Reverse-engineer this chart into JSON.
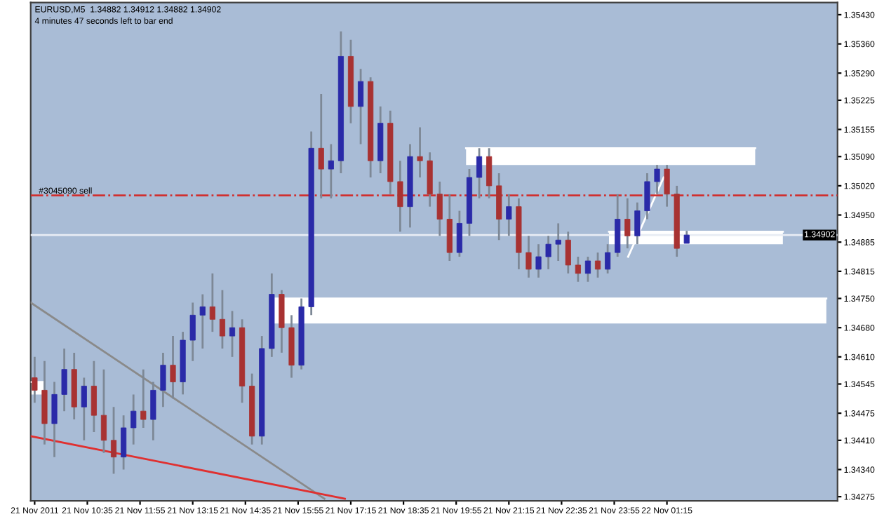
{
  "chart_data": {
    "type": "candlestick",
    "title": "EURUSD,M5  1.34882 1.34912 1.34882 1.34902",
    "subtitle": "4 minutes 47 seconds left to bar end",
    "x": [
      "2011-11-21T09:15",
      "2011-11-21T09:30",
      "2011-11-21T09:45",
      "2011-11-21T10:00",
      "2011-11-21T10:15",
      "2011-11-21T10:30",
      "2011-11-21T10:45",
      "2011-11-21T11:00",
      "2011-11-21T11:15",
      "2011-11-21T11:30",
      "2011-11-21T11:45",
      "2011-11-21T12:00",
      "2011-11-21T12:15",
      "2011-11-21T12:30",
      "2011-11-21T12:45",
      "2011-11-21T13:00",
      "2011-11-21T13:15",
      "2011-11-21T13:30",
      "2011-11-21T13:45",
      "2011-11-21T14:00",
      "2011-11-21T14:15",
      "2011-11-21T14:30",
      "2011-11-21T14:45",
      "2011-11-21T15:00",
      "2011-11-21T15:15",
      "2011-11-21T15:30",
      "2011-11-21T15:45",
      "2011-11-21T16:00",
      "2011-11-21T16:15",
      "2011-11-21T16:30",
      "2011-11-21T16:45",
      "2011-11-21T17:00",
      "2011-11-21T17:15",
      "2011-11-21T17:30",
      "2011-11-21T17:45",
      "2011-11-21T18:00",
      "2011-11-21T18:15",
      "2011-11-21T18:30",
      "2011-11-21T18:45",
      "2011-11-21T19:00",
      "2011-11-21T19:15",
      "2011-11-21T19:30",
      "2011-11-21T19:45",
      "2011-11-21T20:00",
      "2011-11-21T20:15",
      "2011-11-21T20:30",
      "2011-11-21T20:45",
      "2011-11-21T21:00",
      "2011-11-21T21:15",
      "2011-11-21T21:30",
      "2011-11-21T21:45",
      "2011-11-21T22:00",
      "2011-11-21T22:15",
      "2011-11-21T22:30",
      "2011-11-21T22:45",
      "2011-11-21T23:00",
      "2011-11-21T23:15",
      "2011-11-21T23:30",
      "2011-11-21T23:45",
      "2011-11-22T00:00",
      "2011-11-22T00:15",
      "2011-11-22T00:30",
      "2011-11-22T00:45",
      "2011-11-22T01:00",
      "2011-11-22T01:15",
      "2011-11-22T01:30",
      "2011-11-22T01:45"
    ],
    "ohlc": [
      [
        1.3456,
        1.3461,
        1.345,
        1.3453
      ],
      [
        1.3453,
        1.346,
        1.344,
        1.3445
      ],
      [
        1.3445,
        1.3455,
        1.3437,
        1.3452
      ],
      [
        1.3452,
        1.3463,
        1.3448,
        1.3458
      ],
      [
        1.3458,
        1.3462,
        1.3446,
        1.3449
      ],
      [
        1.3449,
        1.3456,
        1.3441,
        1.3454
      ],
      [
        1.3454,
        1.346,
        1.3443,
        1.3447
      ],
      [
        1.3447,
        1.3458,
        1.3438,
        1.3441
      ],
      [
        1.3441,
        1.3449,
        1.3433,
        1.3437
      ],
      [
        1.3437,
        1.3447,
        1.3434,
        1.3444
      ],
      [
        1.3444,
        1.3452,
        1.344,
        1.3448
      ],
      [
        1.3448,
        1.3458,
        1.3444,
        1.3446
      ],
      [
        1.3446,
        1.3455,
        1.3441,
        1.3453
      ],
      [
        1.3453,
        1.3462,
        1.3449,
        1.3459
      ],
      [
        1.3459,
        1.3466,
        1.3451,
        1.3455
      ],
      [
        1.3455,
        1.3467,
        1.3452,
        1.3465
      ],
      [
        1.3465,
        1.3474,
        1.346,
        1.3471
      ],
      [
        1.3471,
        1.3476,
        1.3463,
        1.3473
      ],
      [
        1.3473,
        1.3481,
        1.3467,
        1.347
      ],
      [
        1.347,
        1.3477,
        1.3463,
        1.3466
      ],
      [
        1.3466,
        1.3472,
        1.3461,
        1.3468
      ],
      [
        1.3468,
        1.347,
        1.345,
        1.3454
      ],
      [
        1.3454,
        1.3457,
        1.344,
        1.3442
      ],
      [
        1.3442,
        1.3466,
        1.344,
        1.3463
      ],
      [
        1.3463,
        1.3481,
        1.3461,
        1.3476
      ],
      [
        1.3476,
        1.3477,
        1.3462,
        1.3468
      ],
      [
        1.3468,
        1.3471,
        1.3456,
        1.3459
      ],
      [
        1.3459,
        1.3475,
        1.3458,
        1.3473
      ],
      [
        1.3473,
        1.3515,
        1.3471,
        1.3511
      ],
      [
        1.3511,
        1.3524,
        1.3499,
        1.3506
      ],
      [
        1.3506,
        1.3512,
        1.3499,
        1.3508
      ],
      [
        1.3508,
        1.3539,
        1.3505,
        1.3533
      ],
      [
        1.3533,
        1.3537,
        1.3517,
        1.3521
      ],
      [
        1.3521,
        1.353,
        1.3512,
        1.3527
      ],
      [
        1.3527,
        1.3528,
        1.3504,
        1.3508
      ],
      [
        1.3508,
        1.3521,
        1.3505,
        1.3517
      ],
      [
        1.3517,
        1.352,
        1.35,
        1.3503
      ],
      [
        1.3503,
        1.3508,
        1.3491,
        1.3497
      ],
      [
        1.3497,
        1.3512,
        1.3492,
        1.3509
      ],
      [
        1.3509,
        1.3516,
        1.3504,
        1.3508
      ],
      [
        1.3508,
        1.351,
        1.3497,
        1.35
      ],
      [
        1.35,
        1.3503,
        1.349,
        1.3494
      ],
      [
        1.3494,
        1.35,
        1.3484,
        1.3486
      ],
      [
        1.3486,
        1.3496,
        1.3485,
        1.3493
      ],
      [
        1.3493,
        1.3506,
        1.349,
        1.3504
      ],
      [
        1.3504,
        1.3511,
        1.3499,
        1.3509
      ],
      [
        1.3509,
        1.3511,
        1.3499,
        1.3502
      ],
      [
        1.3502,
        1.3505,
        1.3489,
        1.3494
      ],
      [
        1.3494,
        1.35,
        1.349,
        1.3497
      ],
      [
        1.3497,
        1.3499,
        1.3482,
        1.3486
      ],
      [
        1.3486,
        1.349,
        1.348,
        1.3482
      ],
      [
        1.3482,
        1.3488,
        1.348,
        1.3485
      ],
      [
        1.3485,
        1.349,
        1.3482,
        1.3488
      ],
      [
        1.3488,
        1.3493,
        1.3484,
        1.3489
      ],
      [
        1.3489,
        1.3491,
        1.3481,
        1.3483
      ],
      [
        1.3483,
        1.3485,
        1.3479,
        1.3481
      ],
      [
        1.3481,
        1.3485,
        1.3479,
        1.3484
      ],
      [
        1.3484,
        1.3486,
        1.348,
        1.3482
      ],
      [
        1.3482,
        1.3488,
        1.3481,
        1.3486
      ],
      [
        1.3486,
        1.35,
        1.3485,
        1.3494
      ],
      [
        1.3494,
        1.3499,
        1.3487,
        1.349
      ],
      [
        1.349,
        1.3498,
        1.3488,
        1.3496
      ],
      [
        1.3496,
        1.3505,
        1.3494,
        1.3503
      ],
      [
        1.3503,
        1.3507,
        1.35,
        1.3506
      ],
      [
        1.3506,
        1.3507,
        1.3497,
        1.35
      ],
      [
        1.35,
        1.3502,
        1.3485,
        1.3487
      ],
      [
        1.34882,
        1.34912,
        1.34882,
        1.34902
      ]
    ],
    "colors": [
      "#a83232",
      "#a83232",
      "#2a2aa8",
      "#2a2aa8",
      "#a83232",
      "#2a2aa8",
      "#a83232",
      "#a83232",
      "#a83232",
      "#2a2aa8",
      "#2a2aa8",
      "#a83232",
      "#2a2aa8",
      "#2a2aa8",
      "#a83232",
      "#2a2aa8",
      "#2a2aa8",
      "#2a2aa8",
      "#a83232",
      "#a83232",
      "#2a2aa8",
      "#a83232",
      "#a83232",
      "#2a2aa8",
      "#2a2aa8",
      "#a83232",
      "#a83232",
      "#2a2aa8",
      "#2a2aa8",
      "#a83232",
      "#2a2aa8",
      "#2a2aa8",
      "#a83232",
      "#2a2aa8",
      "#a83232",
      "#2a2aa8",
      "#a83232",
      "#a83232",
      "#2a2aa8",
      "#a83232",
      "#a83232",
      "#a83232",
      "#a83232",
      "#2a2aa8",
      "#2a2aa8",
      "#2a2aa8",
      "#a83232",
      "#a83232",
      "#2a2aa8",
      "#a83232",
      "#a83232",
      "#2a2aa8",
      "#2a2aa8",
      "#2a2aa8",
      "#a83232",
      "#a83232",
      "#2a2aa8",
      "#a83232",
      "#2a2aa8",
      "#2a2aa8",
      "#a83232",
      "#2a2aa8",
      "#2a2aa8",
      "#2a2aa8",
      "#a83232",
      "#a83232",
      "#2a2aa8"
    ],
    "series": [
      {
        "type": "line",
        "color": "#8a8a8a",
        "x": [
          "2011-11-21T09:09",
          "2011-11-21T16:35"
        ],
        "values": [
          1.3474,
          1.3427
        ]
      },
      {
        "type": "line",
        "color": "#e03030",
        "x": [
          "2011-11-21T09:09",
          "2011-11-21T17:06"
        ],
        "values": [
          1.3442,
          1.3427
        ]
      },
      {
        "type": "line",
        "color": "#ffffff",
        "x": [
          "2011-11-22T00:16",
          "2011-11-22T01:10"
        ],
        "values": [
          1.3485,
          1.3504
        ]
      },
      {
        "type": "line",
        "color": "#ffffff",
        "x": [
          "2011-11-21T20:10",
          "2011-11-22T03:29"
        ],
        "values": [
          1.3511,
          1.3511
        ],
        "lower": [
          1.3507,
          1.3507
        ],
        "upper": [
          1.3511,
          1.3511
        ]
      },
      {
        "type": "line",
        "color": "#ffffff",
        "x": [
          "2011-11-21T23:47",
          "2011-11-22T04:11"
        ],
        "values": [
          1.3491,
          1.3491
        ],
        "lower": [
          1.3488,
          1.3488
        ],
        "upper": [
          1.3491,
          1.3491
        ]
      },
      {
        "type": "line",
        "color": "#ffffff",
        "x": [
          "2011-11-21T15:17",
          "2011-11-22T05:17"
        ],
        "values": [
          1.3475,
          1.3475
        ],
        "lower": [
          1.3469,
          1.3469
        ],
        "upper": [
          1.3475,
          1.3475
        ]
      },
      {
        "type": "line",
        "color": "#ffffff",
        "x": [
          "2011-11-21T09:09",
          "2011-11-21T09:29"
        ],
        "values": [
          1.3455,
          1.3455
        ],
        "lower": [
          1.3452,
          1.3452
        ],
        "upper": [
          1.3455,
          1.3455
        ]
      }
    ],
    "ref_lines": [
      {
        "axis": "y",
        "value": 1.34997,
        "label": "#3045090 sell",
        "color": "#d03030",
        "line_style": "dashdot"
      },
      {
        "axis": "y",
        "value": 1.34902,
        "label": "1.34902",
        "color": "#e8ecf4",
        "line_style": "solid"
      }
    ],
    "xlim": [
      "2011-11-21T09:09",
      "2011-11-22T05:34"
    ],
    "ylim": [
      1.34265,
      1.35459
    ],
    "xticks": [
      {
        "value": "2011-11-21T09:15",
        "label": "21 Nov 2011"
      },
      {
        "value": "2011-11-21T10:35",
        "label": "21 Nov 10:35"
      },
      {
        "value": "2011-11-21T11:55",
        "label": "21 Nov 11:55"
      },
      {
        "value": "2011-11-21T13:15",
        "label": "21 Nov 13:15"
      },
      {
        "value": "2011-11-21T14:35",
        "label": "21 Nov 14:35"
      },
      {
        "value": "2011-11-21T15:55",
        "label": "21 Nov 15:55"
      },
      {
        "value": "2011-11-21T17:15",
        "label": "21 Nov 17:15"
      },
      {
        "value": "2011-11-21T18:35",
        "label": "21 Nov 18:35"
      },
      {
        "value": "2011-11-21T19:55",
        "label": "21 Nov 19:55"
      },
      {
        "value": "2011-11-21T21:15",
        "label": "21 Nov 21:15"
      },
      {
        "value": "2011-11-21T22:35",
        "label": "21 Nov 22:35"
      },
      {
        "value": "2011-11-21T23:55",
        "label": "21 Nov 23:55"
      },
      {
        "value": "2011-11-22T01:15",
        "label": "22 Nov 01:15"
      }
    ],
    "yticks": [
      {
        "value": 1.3543,
        "label": "1.35430"
      },
      {
        "value": 1.3536,
        "label": "1.35360"
      },
      {
        "value": 1.3529,
        "label": "1.35290"
      },
      {
        "value": 1.35225,
        "label": "1.35225"
      },
      {
        "value": 1.35155,
        "label": "1.35155"
      },
      {
        "value": 1.3509,
        "label": "1.35090"
      },
      {
        "value": 1.3502,
        "label": "1.35020"
      },
      {
        "value": 1.3495,
        "label": "1.34950"
      },
      {
        "value": 1.34885,
        "label": "1.34885"
      },
      {
        "value": 1.34815,
        "label": "1.34815"
      },
      {
        "value": 1.3475,
        "label": "1.34750"
      },
      {
        "value": 1.3468,
        "label": "1.34680"
      },
      {
        "value": 1.3461,
        "label": "1.34610"
      },
      {
        "value": 1.34545,
        "label": "1.34545"
      },
      {
        "value": 1.34475,
        "label": "1.34475"
      },
      {
        "value": 1.3441,
        "label": "1.34410"
      },
      {
        "value": 1.3434,
        "label": "1.34340"
      },
      {
        "value": 1.34275,
        "label": "1.34275"
      }
    ]
  }
}
